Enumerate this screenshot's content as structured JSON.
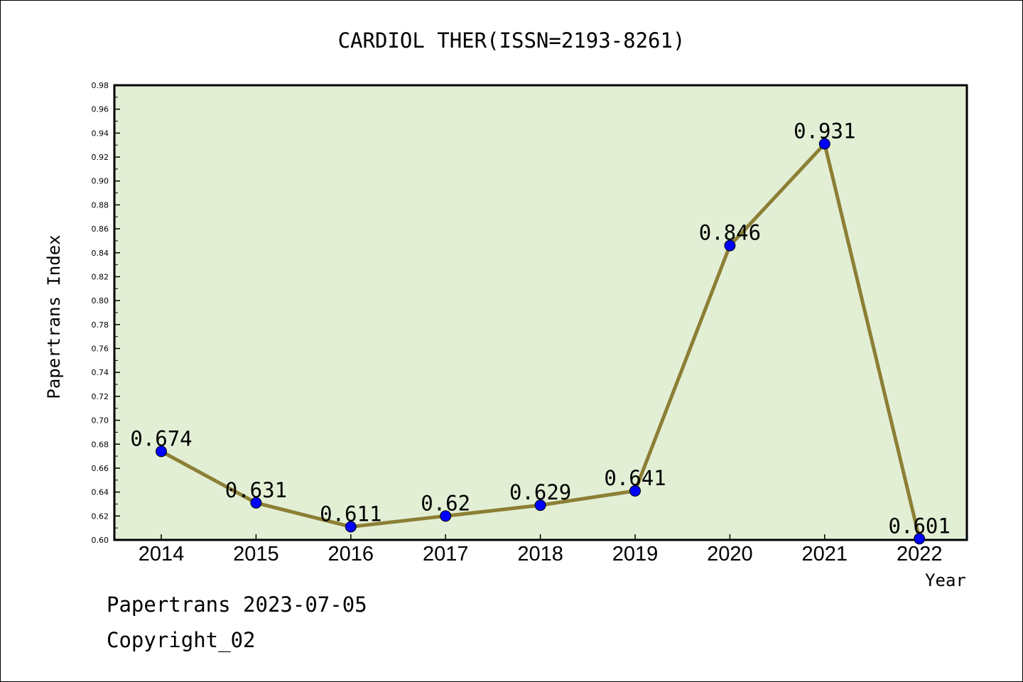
{
  "chart_data": {
    "type": "line",
    "title": "CARDIOL THER(ISSN=2193-8261)",
    "xlabel": "Year",
    "ylabel": "Papertrans Index",
    "categories": [
      "2014",
      "2015",
      "2016",
      "2017",
      "2018",
      "2019",
      "2020",
      "2021",
      "2022"
    ],
    "values": [
      0.674,
      0.631,
      0.611,
      0.62,
      0.629,
      0.641,
      0.846,
      0.931,
      0.601
    ],
    "data_labels": [
      "0.674",
      "0.631",
      "0.611",
      "0.62",
      "0.629",
      "0.641",
      "0.846",
      "0.931",
      "0.601"
    ],
    "ylim": [
      0.6,
      0.98
    ],
    "yticks": [
      "0.60",
      "0.62",
      "0.64",
      "0.66",
      "0.68",
      "0.70",
      "0.72",
      "0.74",
      "0.76",
      "0.78",
      "0.80",
      "0.82",
      "0.84",
      "0.86",
      "0.88",
      "0.90",
      "0.92",
      "0.94",
      "0.96",
      "0.98"
    ],
    "grid": false,
    "legend": "none",
    "colors": {
      "plot_background": "#e2efd5",
      "line": "#8c7f35",
      "marker": "#0000ff"
    }
  },
  "footer": {
    "source": "Papertrans 2023-07-05",
    "copyright": "Copyright_02"
  }
}
